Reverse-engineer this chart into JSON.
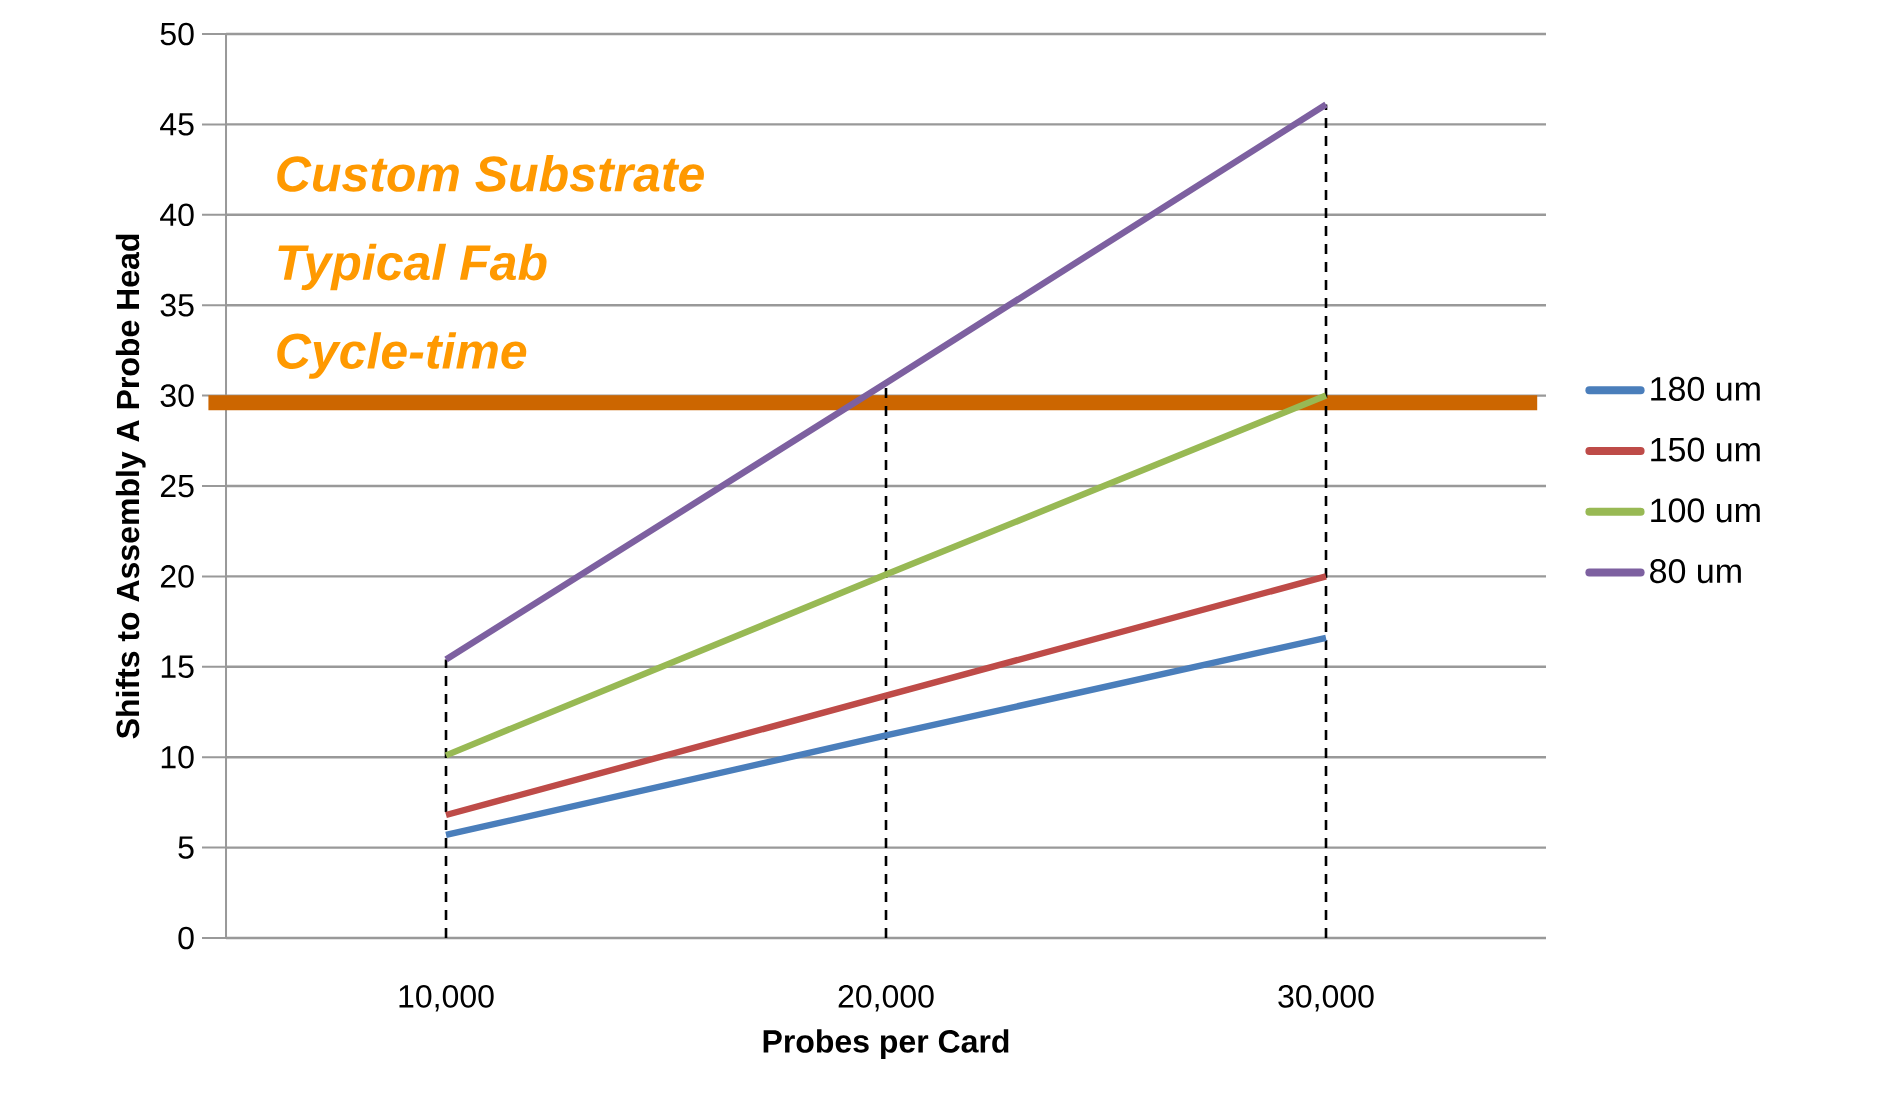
{
  "chart_data": {
    "type": "line",
    "xlabel": "Probes per Card",
    "ylabel": "Shifts to Assembly A Probe Head",
    "categories": [
      "10,000",
      "20,000",
      "30,000"
    ],
    "series": [
      {
        "name": "180 um",
        "color": "#4a7ebb",
        "values": [
          5.7,
          11.2,
          16.6
        ]
      },
      {
        "name": "150 um",
        "color": "#be4b48",
        "values": [
          6.8,
          13.4,
          20
        ]
      },
      {
        "name": "100 um",
        "color": "#98b954",
        "values": [
          10.1,
          20.1,
          30
        ]
      },
      {
        "name": "80 um",
        "color": "#7d60a0",
        "values": [
          15.4,
          30.7,
          46.1
        ]
      }
    ],
    "ylim": [
      0,
      50
    ],
    "yticks": [
      0,
      5,
      10,
      15,
      20,
      25,
      30,
      35,
      40,
      45,
      50
    ],
    "grid": "y",
    "legend": "right",
    "marker": "none",
    "line_style": "solid",
    "ref_lines": [
      {
        "axis": "y",
        "value": 29.6,
        "color": "#cc6600",
        "line_style": "solid"
      },
      {
        "axis": "x",
        "value": "10,000",
        "color": "#000000",
        "line_style": "dashed"
      },
      {
        "axis": "x",
        "value": "20,000",
        "color": "#000000",
        "line_style": "dashed"
      },
      {
        "axis": "x",
        "value": "30,000",
        "color": "#000000",
        "line_style": "dashed"
      }
    ],
    "annotations": [
      "Custom Substrate",
      "Typical Fab",
      "Cycle-time"
    ]
  }
}
